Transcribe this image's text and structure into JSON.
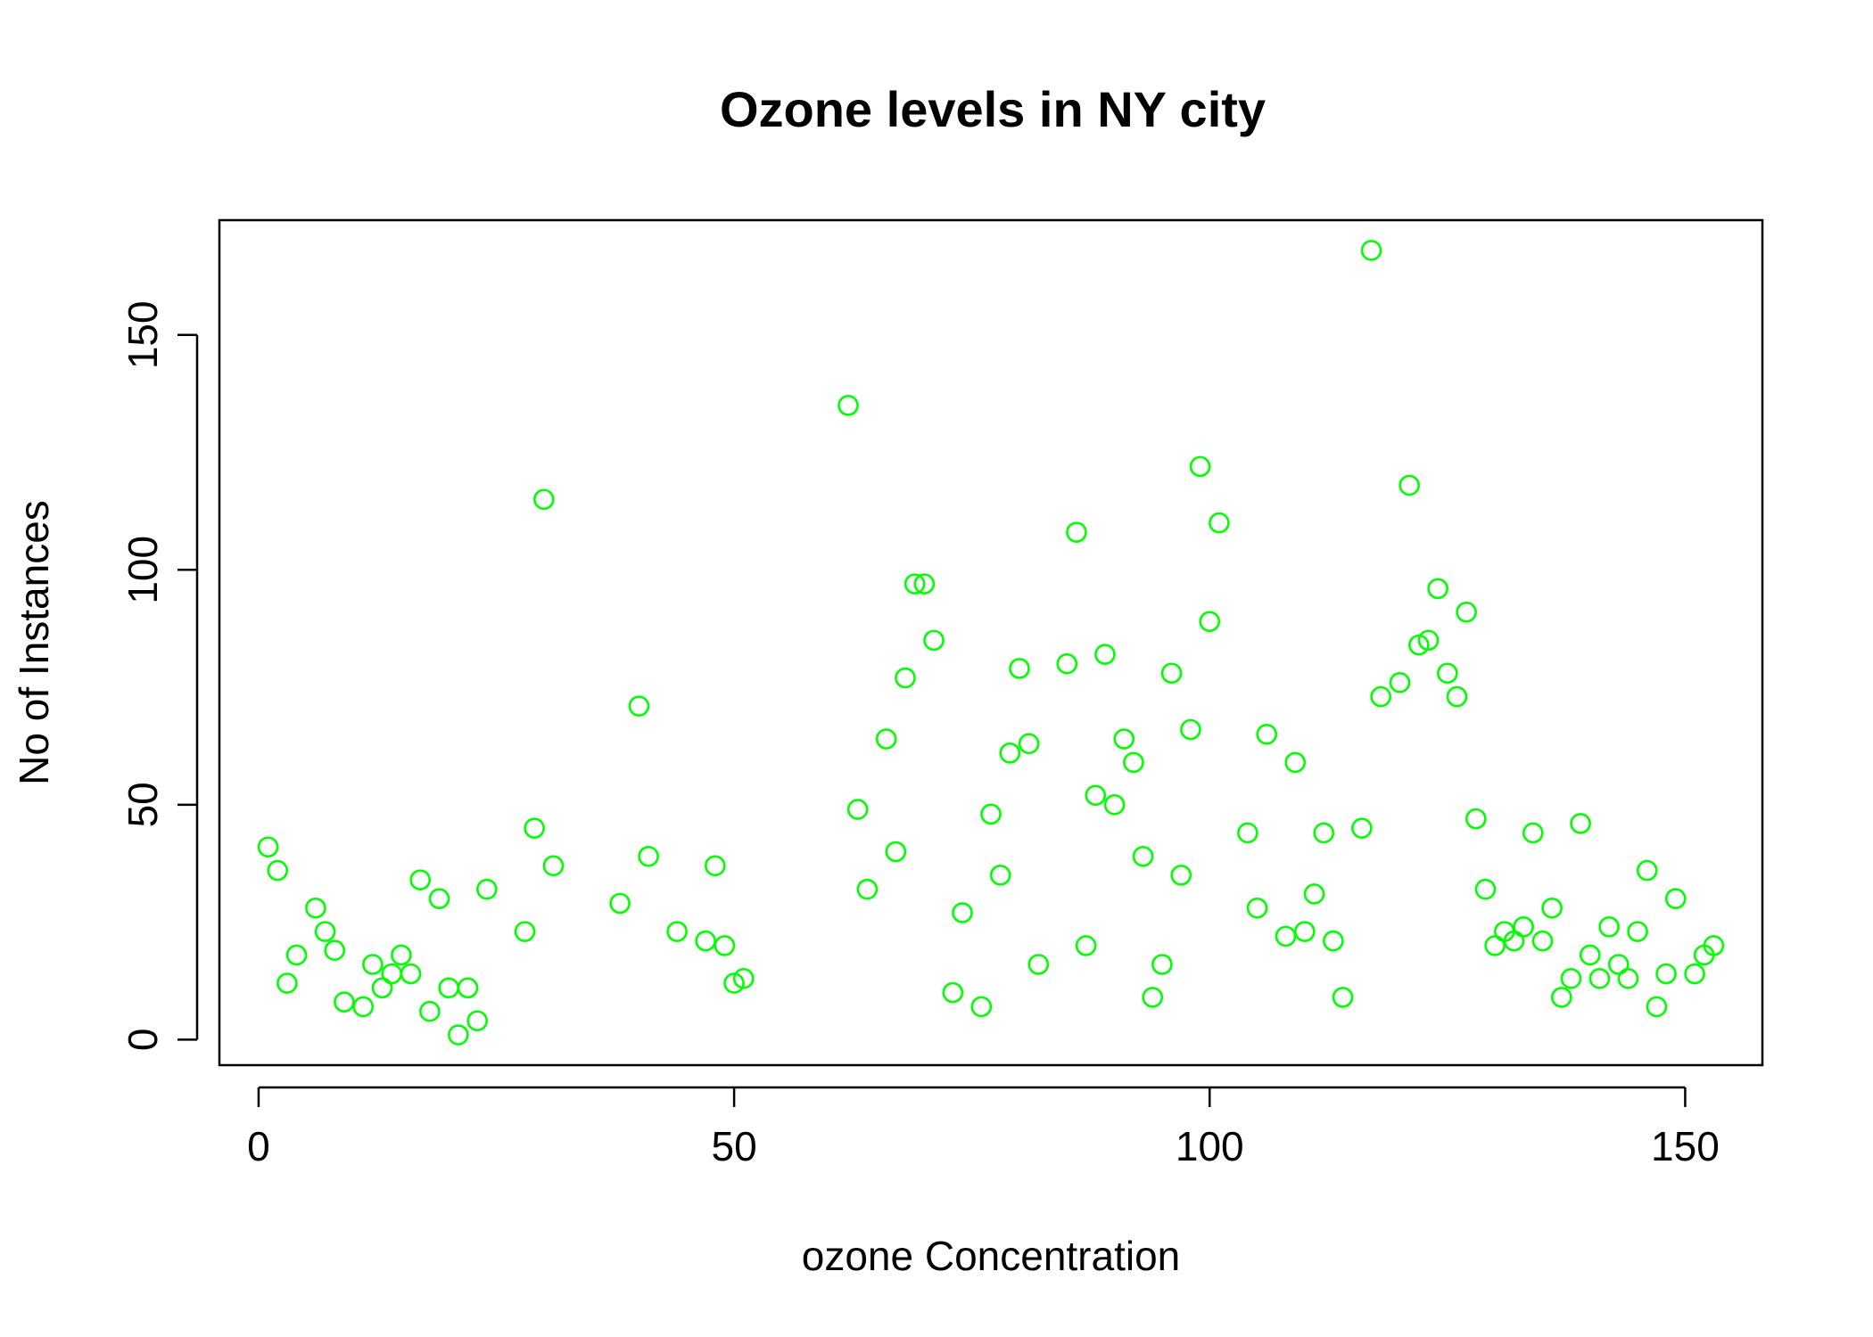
{
  "chart_data": {
    "type": "scatter",
    "title": "Ozone levels in NY city",
    "xlabel": "ozone Concentration",
    "ylabel": "No of Instances",
    "xlim": [
      -4.12,
      158.12
    ],
    "ylim": [
      -5.44,
      174.44
    ],
    "xticks": [
      0,
      50,
      100,
      150
    ],
    "yticks": [
      0,
      50,
      100,
      150
    ],
    "xtick_labels": [
      "0",
      "50",
      "100",
      "150"
    ],
    "ytick_labels": [
      "0",
      "50",
      "100",
      "150"
    ],
    "grid": false,
    "legend": false,
    "marker": "open-circle",
    "point_color": "#00ff00",
    "x": [
      1,
      2,
      3,
      4,
      6,
      7,
      8,
      9,
      11,
      12,
      13,
      14,
      15,
      16,
      17,
      18,
      19,
      20,
      21,
      22,
      23,
      24,
      28,
      29,
      30,
      31,
      38,
      40,
      41,
      44,
      47,
      48,
      49,
      50,
      51,
      62,
      63,
      64,
      66,
      67,
      68,
      69,
      70,
      71,
      73,
      74,
      76,
      77,
      78,
      79,
      80,
      81,
      82,
      85,
      86,
      87,
      88,
      89,
      90,
      91,
      92,
      93,
      94,
      95,
      96,
      97,
      98,
      99,
      100,
      101,
      104,
      105,
      106,
      108,
      109,
      110,
      111,
      112,
      113,
      114,
      116,
      117,
      118,
      120,
      121,
      122,
      123,
      124,
      125,
      126,
      127,
      128,
      129,
      130,
      131,
      132,
      133,
      134,
      135,
      136,
      137,
      138,
      139,
      140,
      141,
      142,
      143,
      144,
      145,
      146,
      147,
      148,
      149,
      151,
      152,
      153
    ],
    "y": [
      41,
      36,
      12,
      18,
      28,
      23,
      19,
      8,
      7,
      16,
      11,
      14,
      18,
      14,
      34,
      6,
      30,
      11,
      1,
      11,
      4,
      32,
      23,
      45,
      115,
      37,
      29,
      71,
      39,
      23,
      21,
      37,
      20,
      12,
      13,
      135,
      49,
      32,
      64,
      40,
      77,
      97,
      97,
      85,
      10,
      27,
      7,
      48,
      35,
      61,
      79,
      63,
      16,
      80,
      108,
      20,
      52,
      82,
      50,
      64,
      59,
      39,
      9,
      16,
      78,
      35,
      66,
      122,
      89,
      110,
      44,
      28,
      65,
      22,
      59,
      23,
      31,
      44,
      21,
      9,
      45,
      168,
      73,
      76,
      118,
      84,
      85,
      96,
      78,
      73,
      91,
      47,
      32,
      20,
      23,
      21,
      24,
      44,
      21,
      28,
      9,
      13,
      46,
      18,
      13,
      24,
      16,
      13,
      23,
      36,
      7,
      14,
      30,
      14,
      18,
      20
    ]
  }
}
